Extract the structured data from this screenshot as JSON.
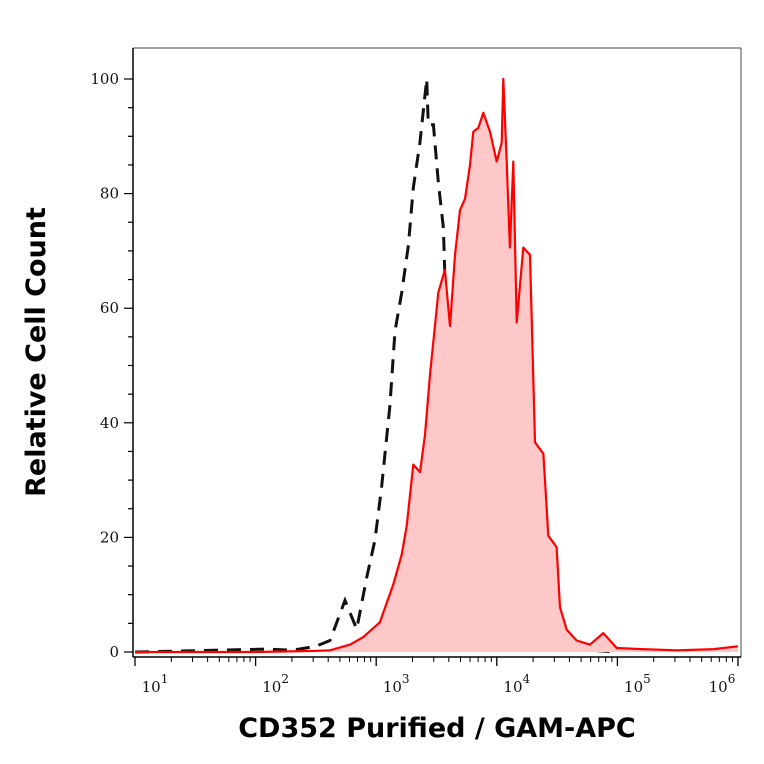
{
  "chart_data": {
    "type": "area",
    "xlabel": "CD352 Purified / GAM-APC",
    "ylabel": "Relative Cell Count",
    "x_scale": "log",
    "xlim": [
      10,
      1000000
    ],
    "ylim": [
      0,
      105
    ],
    "x_ticks": [
      {
        "base": "10",
        "exp": "1",
        "value": 10
      },
      {
        "base": "10",
        "exp": "2",
        "value": 100
      },
      {
        "base": "10",
        "exp": "3",
        "value": 1000
      },
      {
        "base": "10",
        "exp": "4",
        "value": 10000
      },
      {
        "base": "10",
        "exp": "5",
        "value": 100000
      },
      {
        "base": "10",
        "exp": "6",
        "value": 1000000
      }
    ],
    "y_ticks": [
      "0",
      "20",
      "40",
      "60",
      "80",
      "100"
    ],
    "grid": false,
    "legend": "none",
    "series": [
      {
        "style": "dashed-line",
        "color": "#111111",
        "x": [
          10,
          126,
          200,
          316,
          414,
          551,
          689,
          834,
          977,
          1109,
          1300,
          1432,
          1626,
          1849,
          2032,
          2307,
          2624,
          2704,
          2979,
          3273,
          3606,
          3837,
          4227,
          4797,
          5445,
          5998,
          7261,
          8790,
          10715,
          16596,
          22909,
          38019,
          63096,
          100000
        ],
        "y": [
          0,
          0.5,
          0.3,
          1,
          2,
          9,
          4,
          13,
          19.6,
          28.8,
          43,
          56,
          62.7,
          71,
          81,
          89,
          100,
          92,
          92,
          82,
          74,
          56,
          43,
          28.8,
          18.3,
          9,
          3,
          1,
          2,
          4,
          2.6,
          1,
          0.3,
          0
        ]
      },
      {
        "style": "filled-area",
        "color": "#ff0000",
        "fill": "#ffc8c8",
        "x": [
          10,
          100,
          316,
          414,
          607,
          782,
          1074,
          1387,
          1626,
          1791,
          2032,
          2307,
          2541,
          2793,
          3273,
          3715,
          4093,
          4498,
          4955,
          5445,
          5998,
          6383,
          7031,
          7727,
          8790,
          9977,
          10990,
          11324,
          12078,
          12853,
          13709,
          14622,
          16596,
          18836,
          20749,
          24322,
          26730,
          31333,
          33420,
          38019,
          45920,
          59293,
          76384,
          98628,
          158489,
          316228,
          630957,
          1000000
        ],
        "y": [
          0,
          0,
          0.2,
          0.3,
          1.3,
          2.6,
          5.2,
          11.8,
          17,
          22,
          32.7,
          31.4,
          37.9,
          48.4,
          62.7,
          66.7,
          56.9,
          69.3,
          77.1,
          79.1,
          85,
          90.8,
          91.5,
          94.1,
          90.8,
          85.6,
          88.9,
          100,
          85.6,
          70.6,
          85.6,
          57.5,
          70.6,
          69.3,
          36.6,
          34.6,
          20.3,
          18.3,
          7.8,
          3.9,
          2,
          1.3,
          3.3,
          0.7,
          0.5,
          0.3,
          0.5,
          1
        ]
      }
    ]
  }
}
